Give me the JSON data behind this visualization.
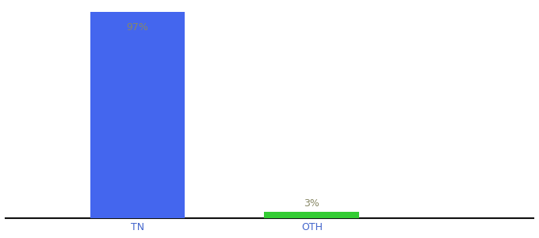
{
  "categories": [
    "TN",
    "OTH"
  ],
  "values": [
    97,
    3
  ],
  "bar_colors": [
    "#4466ee",
    "#33cc33"
  ],
  "label_texts": [
    "97%",
    "3%"
  ],
  "label_color": "#888866",
  "ylim": [
    0,
    100
  ],
  "background_color": "#ffffff",
  "tick_label_color": "#4466cc",
  "tick_label_fontsize": 9,
  "bar_width": 0.18,
  "label_fontsize": 9,
  "x_positions": [
    0.25,
    0.58
  ]
}
